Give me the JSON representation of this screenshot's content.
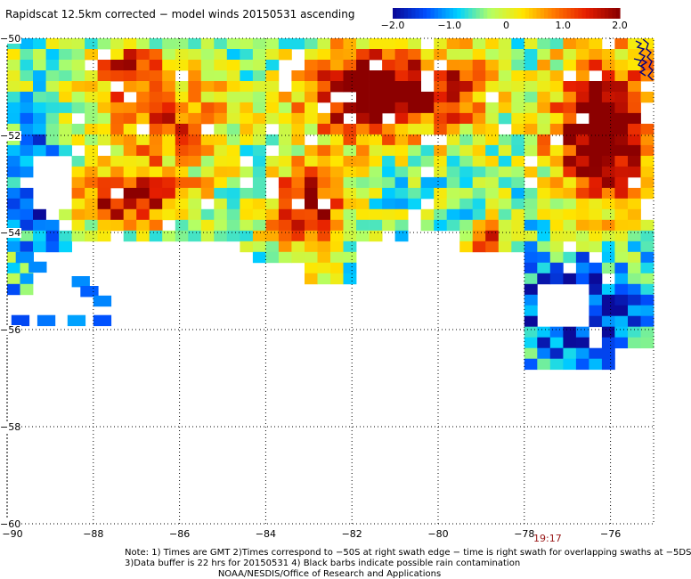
{
  "title": "Rapidscat 12.5km corrected − model winds 20150531 ascending",
  "colorbar": {
    "ticks": [
      "−2.0",
      "−1.0",
      "0",
      "1.0",
      "2.0"
    ],
    "tick_values": [
      -2.0,
      -1.0,
      0,
      1.0,
      2.0
    ],
    "range": [
      -2.0,
      2.0
    ],
    "colors": [
      "#0a0a9a",
      "#0050ff",
      "#00d2ff",
      "#b4ff64",
      "#ffe600",
      "#ff7800",
      "#e61e00",
      "#8c0000"
    ]
  },
  "map": {
    "lon_range": [
      -90,
      -75
    ],
    "lat_range": [
      -60,
      -50
    ],
    "lat_labels": [
      "−50",
      "−52",
      "−54",
      "−56",
      "−58",
      "−60"
    ],
    "lat_values": [
      -50,
      -52,
      -54,
      -56,
      -58,
      -60
    ],
    "lon_labels": [
      "−90",
      "−88",
      "−86",
      "−84",
      "−82",
      "−80",
      "−78",
      "−76"
    ],
    "lon_values": [
      -90,
      -88,
      -86,
      -84,
      -82,
      -80,
      -78,
      -76
    ],
    "time_label": "19:17",
    "land_color": "#000080"
  },
  "notes": {
    "line1": "Note: 1) Times are GMT 2)Times correspond to −50S at right swath edge − time is right swath for overlapping swaths at −5DS",
    "line2": "3)Data buffer is 22 hrs for 20150531 4) Black barbs indicate possible rain contamination",
    "line3": "NOAA/NESDIS/Office of Research and Applications"
  }
}
